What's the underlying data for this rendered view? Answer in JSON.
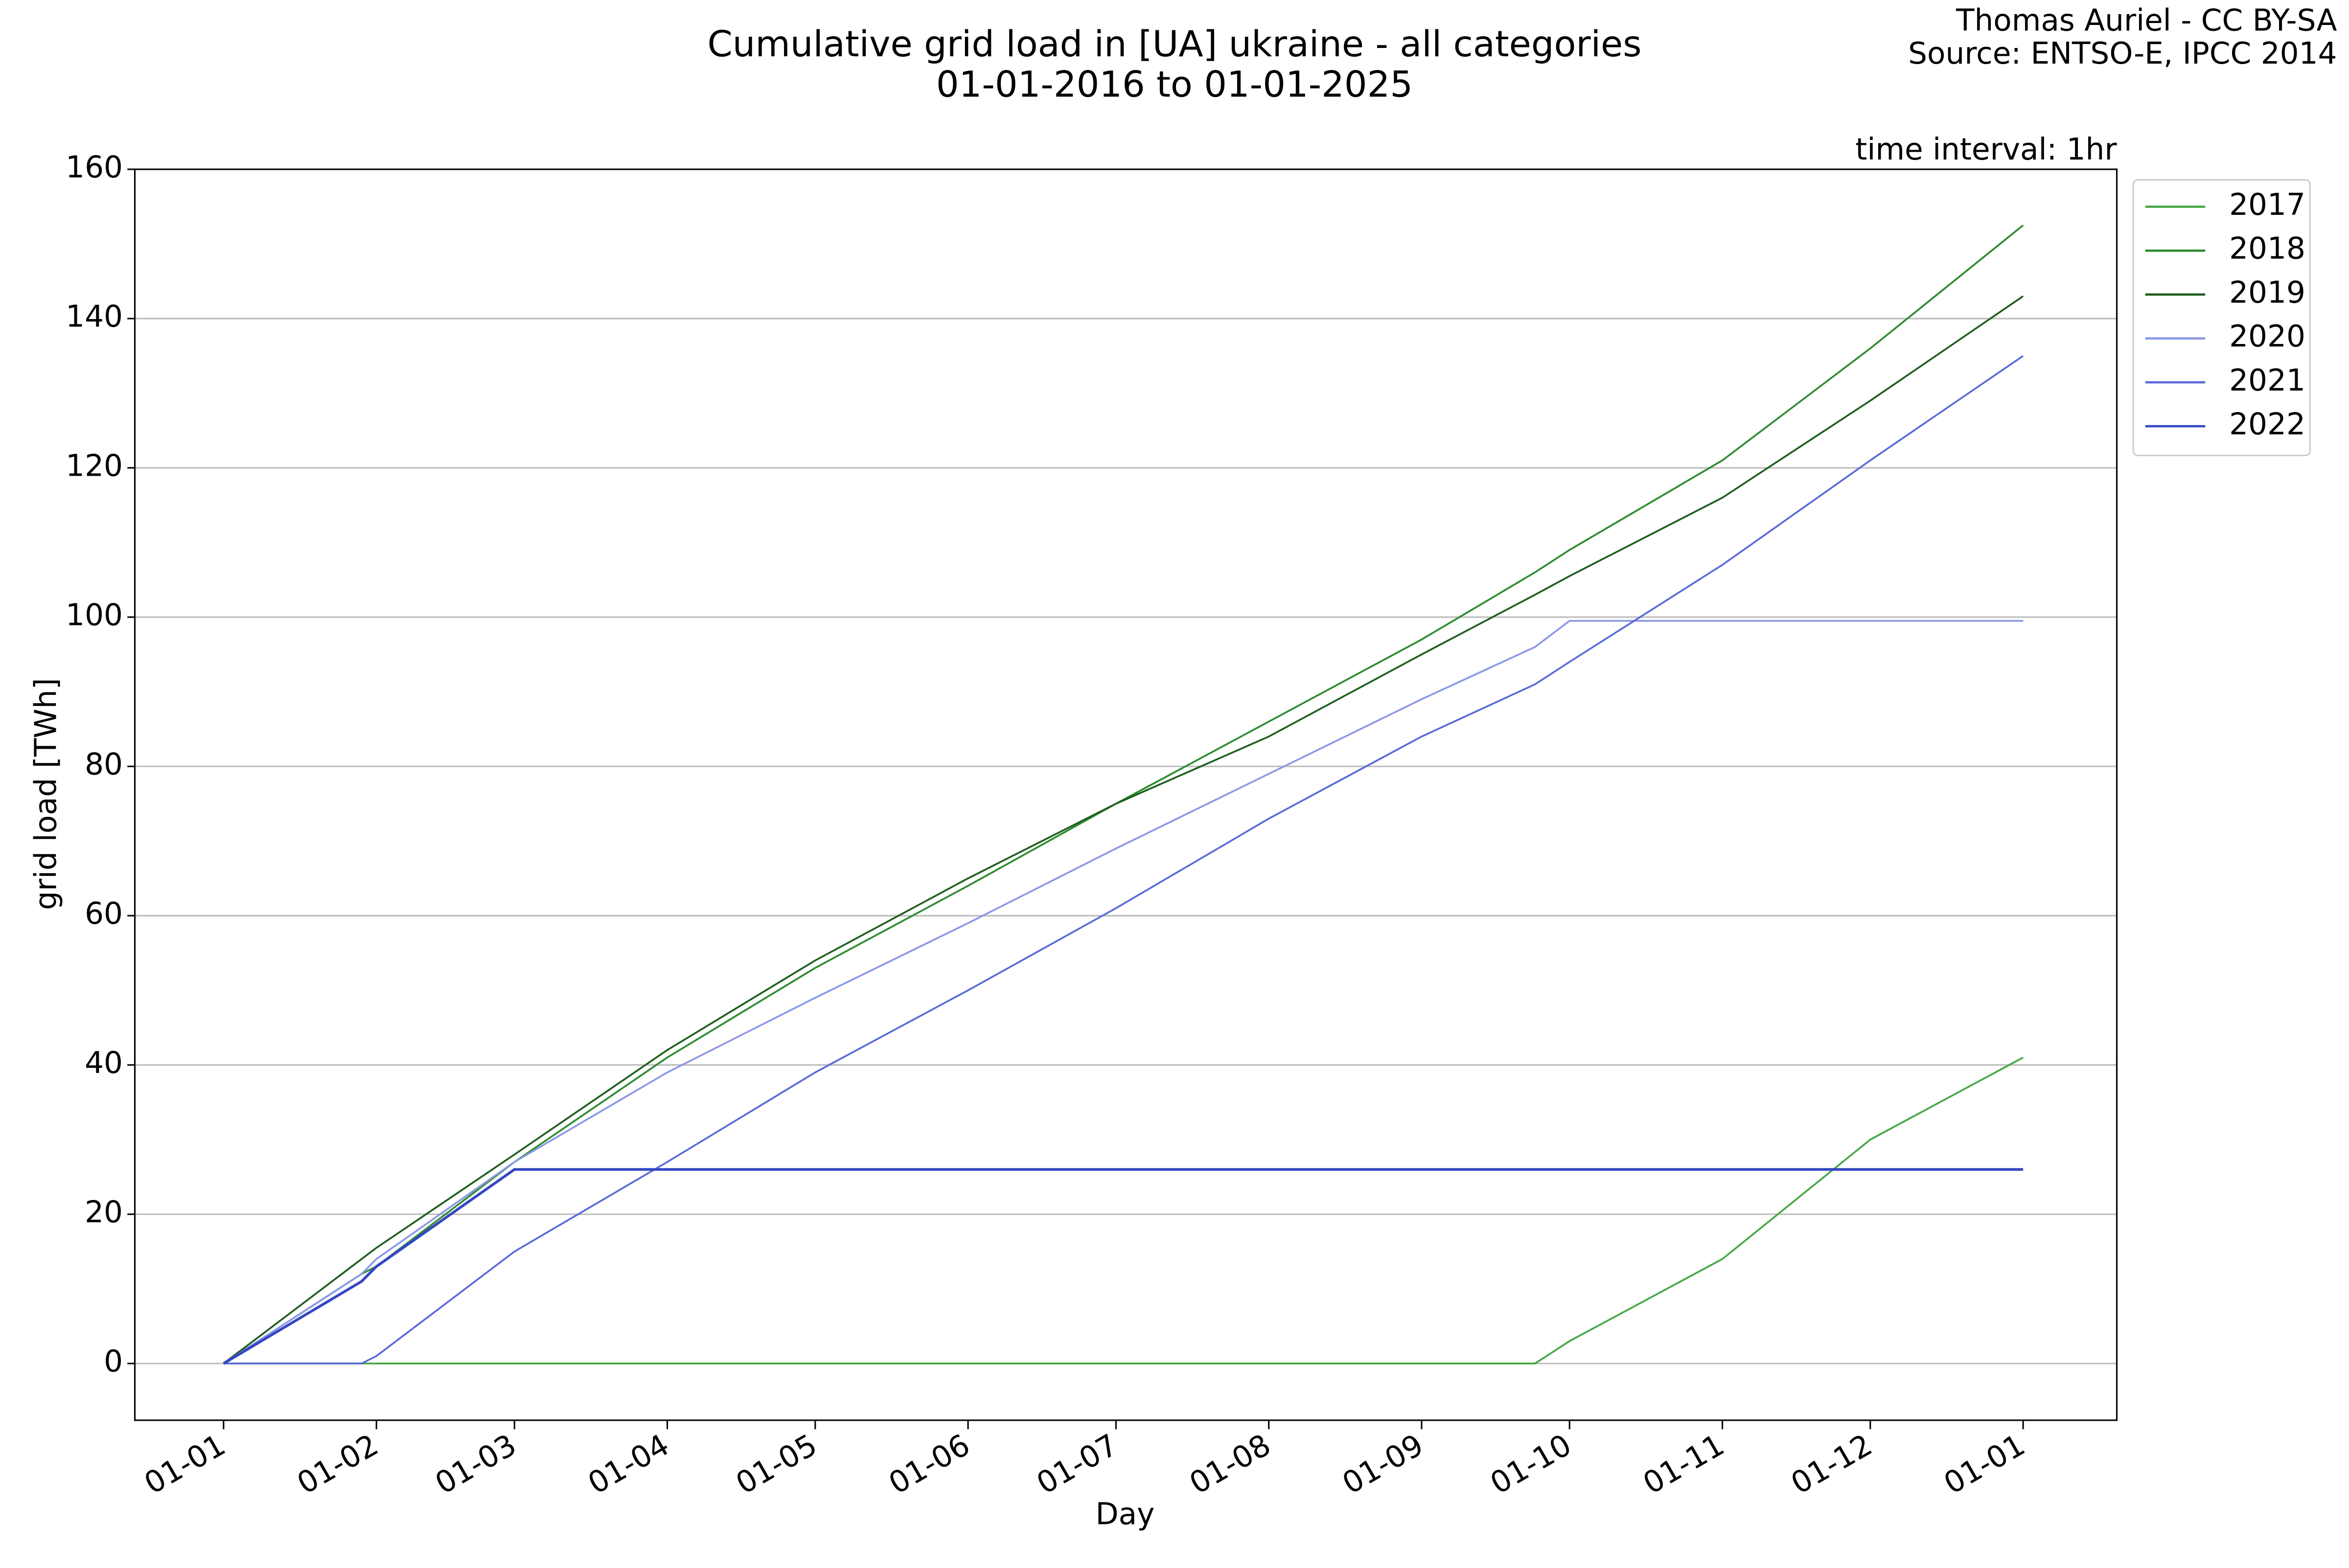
{
  "chart_data": {
    "type": "line",
    "title": "Cumulative grid load in [UA] ukraine - all categories",
    "subtitle": "01-01-2016 to 01-01-2025",
    "annotations": [
      "Thomas Auriel - CC BY-SA",
      "Source: ENTSO-E, IPCC 2014",
      "time interval: 1hr"
    ],
    "x_label": "Day",
    "y_label": "grid load [TWh]",
    "x": [
      0,
      28,
      31,
      59,
      90,
      120,
      151,
      181,
      212,
      243,
      266,
      273,
      304,
      334,
      365
    ],
    "series": [
      {
        "name": "2017",
        "color": "#45a845",
        "values": [
          0,
          0,
          0,
          0,
          0,
          0,
          0,
          0,
          0,
          0,
          0,
          3,
          14,
          30,
          41
        ]
      },
      {
        "name": "2018",
        "color": "#2e8b2e",
        "values": [
          0,
          12,
          13,
          27,
          41,
          53,
          64,
          75,
          86,
          97,
          106,
          109,
          121,
          136,
          152.5
        ]
      },
      {
        "name": "2019",
        "color": "#1e5e1e",
        "values": [
          0,
          14,
          15.5,
          28,
          42,
          54,
          65,
          75,
          84,
          95,
          103,
          105.5,
          116,
          129,
          143
        ]
      },
      {
        "name": "2020",
        "color": "#8a98e6",
        "values": [
          0,
          12,
          14,
          27,
          39,
          49,
          59,
          69,
          79,
          89,
          96,
          99.5,
          99.5,
          99.5,
          99.5
        ]
      },
      {
        "name": "2021",
        "color": "#5a6ad8",
        "values": [
          0,
          0,
          1,
          15,
          27,
          39,
          50,
          61,
          73,
          84,
          91,
          94,
          107,
          121,
          135
        ]
      },
      {
        "name": "2022",
        "color": "#3447c4",
        "values": [
          0,
          11,
          13,
          26,
          26,
          26,
          26,
          26,
          26,
          26,
          26,
          26,
          26,
          26,
          26
        ]
      }
    ],
    "xlim": [
      -18,
      384
    ],
    "xticks": [
      {
        "value": 0,
        "label": "01-01"
      },
      {
        "value": 31,
        "label": "01-02"
      },
      {
        "value": 59,
        "label": "01-03"
      },
      {
        "value": 90,
        "label": "01-04"
      },
      {
        "value": 120,
        "label": "01-05"
      },
      {
        "value": 151,
        "label": "01-06"
      },
      {
        "value": 181,
        "label": "01-07"
      },
      {
        "value": 212,
        "label": "01-08"
      },
      {
        "value": 243,
        "label": "01-09"
      },
      {
        "value": 273,
        "label": "01-10"
      },
      {
        "value": 304,
        "label": "01-11"
      },
      {
        "value": 334,
        "label": "01-12"
      },
      {
        "value": 365,
        "label": "01-01"
      }
    ],
    "ylim": [
      -7.6,
      160
    ],
    "yticks": [
      0,
      20,
      40,
      60,
      80,
      100,
      120,
      140,
      160
    ],
    "grid": true,
    "legend": "outside-right"
  }
}
